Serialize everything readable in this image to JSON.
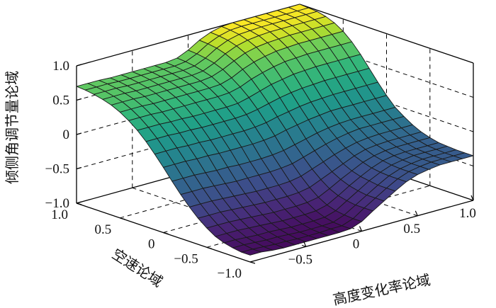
{
  "chart_data": {
    "type": "surface3d",
    "title": "",
    "xlabel": "高度变化率论域",
    "ylabel": "空速论域",
    "zlabel": "倾侧角调节量论域",
    "xlim": [
      -1,
      1
    ],
    "ylim": [
      -1,
      1
    ],
    "zlim": [
      -1,
      1
    ],
    "x_ticks": [
      {
        "value": -0.5,
        "label": "−0.5"
      },
      {
        "value": 0,
        "label": "0"
      },
      {
        "value": 0.5,
        "label": "0.5"
      },
      {
        "value": 1,
        "label": "1.0"
      }
    ],
    "y_ticks": [
      {
        "value": 1,
        "label": "1.0"
      },
      {
        "value": 0.5,
        "label": "0.5"
      },
      {
        "value": 0,
        "label": "0"
      },
      {
        "value": -0.5,
        "label": "−0.5"
      },
      {
        "value": -1,
        "label": "−1.0"
      }
    ],
    "z_ticks": [
      {
        "value": 1,
        "label": "1.0"
      },
      {
        "value": 0.5,
        "label": "0.5"
      },
      {
        "value": 0,
        "label": "0"
      },
      {
        "value": -0.5,
        "label": "−0.5"
      },
      {
        "value": -1,
        "label": "−1.0"
      }
    ],
    "grid": true,
    "colormap": "viridis",
    "grid_x": [
      -1,
      -0.9,
      -0.8,
      -0.7,
      -0.6,
      -0.5,
      -0.4,
      -0.3,
      -0.2,
      -0.1,
      0,
      0.1,
      0.2,
      0.3,
      0.4,
      0.5,
      0.6,
      0.7,
      0.8,
      0.9,
      1
    ],
    "grid_y": [
      -1,
      -0.9,
      -0.8,
      -0.7,
      -0.6,
      -0.5,
      -0.4,
      -0.3,
      -0.2,
      -0.1,
      0,
      0.1,
      0.2,
      0.3,
      0.4,
      0.5,
      0.6,
      0.7,
      0.8,
      0.9,
      1
    ],
    "z_values": [
      [
        -0.9,
        -0.9,
        -0.92,
        -0.93,
        -0.93,
        -0.93,
        -0.93,
        -0.93,
        -0.93,
        -0.92,
        -0.86,
        -0.75,
        -0.65,
        -0.55,
        -0.46,
        -0.4,
        -0.37,
        -0.35,
        -0.35,
        -0.35,
        -0.35
      ],
      [
        -0.9,
        -0.9,
        -0.91,
        -0.92,
        -0.92,
        -0.93,
        -0.93,
        -0.93,
        -0.92,
        -0.92,
        -0.86,
        -0.75,
        -0.65,
        -0.55,
        -0.46,
        -0.4,
        -0.37,
        -0.35,
        -0.35,
        -0.35,
        -0.35
      ],
      [
        -0.88,
        -0.88,
        -0.89,
        -0.9,
        -0.9,
        -0.91,
        -0.92,
        -0.92,
        -0.92,
        -0.91,
        -0.85,
        -0.75,
        -0.65,
        -0.55,
        -0.46,
        -0.4,
        -0.37,
        -0.35,
        -0.35,
        -0.35,
        -0.35
      ],
      [
        -0.85,
        -0.85,
        -0.86,
        -0.87,
        -0.87,
        -0.88,
        -0.89,
        -0.89,
        -0.89,
        -0.88,
        -0.83,
        -0.73,
        -0.63,
        -0.53,
        -0.45,
        -0.39,
        -0.36,
        -0.34,
        -0.34,
        -0.34,
        -0.34
      ],
      [
        -0.8,
        -0.8,
        -0.8,
        -0.81,
        -0.82,
        -0.83,
        -0.84,
        -0.84,
        -0.84,
        -0.83,
        -0.79,
        -0.7,
        -0.6,
        -0.51,
        -0.43,
        -0.37,
        -0.34,
        -0.33,
        -0.33,
        -0.33,
        -0.33
      ],
      [
        -0.72,
        -0.72,
        -0.72,
        -0.73,
        -0.74,
        -0.75,
        -0.76,
        -0.76,
        -0.76,
        -0.75,
        -0.72,
        -0.64,
        -0.55,
        -0.47,
        -0.39,
        -0.34,
        -0.31,
        -0.3,
        -0.3,
        -0.3,
        -0.3
      ],
      [
        -0.62,
        -0.62,
        -0.62,
        -0.63,
        -0.64,
        -0.65,
        -0.66,
        -0.66,
        -0.66,
        -0.65,
        -0.62,
        -0.55,
        -0.48,
        -0.41,
        -0.34,
        -0.29,
        -0.27,
        -0.26,
        -0.26,
        -0.26,
        -0.26
      ],
      [
        -0.5,
        -0.5,
        -0.5,
        -0.51,
        -0.52,
        -0.53,
        -0.54,
        -0.54,
        -0.54,
        -0.53,
        -0.5,
        -0.44,
        -0.38,
        -0.32,
        -0.27,
        -0.23,
        -0.21,
        -0.2,
        -0.2,
        -0.2,
        -0.2
      ],
      [
        -0.36,
        -0.36,
        -0.36,
        -0.37,
        -0.38,
        -0.39,
        -0.39,
        -0.39,
        -0.39,
        -0.38,
        -0.36,
        -0.31,
        -0.26,
        -0.21,
        -0.17,
        -0.14,
        -0.12,
        -0.12,
        -0.12,
        -0.12,
        -0.12
      ],
      [
        -0.21,
        -0.21,
        -0.21,
        -0.22,
        -0.23,
        -0.23,
        -0.24,
        -0.24,
        -0.24,
        -0.23,
        -0.21,
        -0.17,
        -0.13,
        -0.09,
        -0.06,
        -0.04,
        -0.03,
        -0.03,
        -0.03,
        -0.03,
        -0.03
      ],
      [
        -0.05,
        -0.05,
        -0.05,
        -0.06,
        -0.06,
        -0.07,
        -0.07,
        -0.07,
        -0.07,
        -0.06,
        -0.04,
        0,
        0.03,
        0.06,
        0.08,
        0.1,
        0.1,
        0.1,
        0.1,
        0.1,
        0.1
      ],
      [
        0.1,
        0.1,
        0.1,
        0.09,
        0.09,
        0.08,
        0.08,
        0.08,
        0.08,
        0.09,
        0.11,
        0.15,
        0.18,
        0.21,
        0.23,
        0.24,
        0.25,
        0.25,
        0.25,
        0.25,
        0.25
      ],
      [
        0.24,
        0.24,
        0.24,
        0.23,
        0.23,
        0.22,
        0.22,
        0.22,
        0.22,
        0.23,
        0.26,
        0.3,
        0.34,
        0.37,
        0.39,
        0.4,
        0.41,
        0.41,
        0.41,
        0.41,
        0.41
      ],
      [
        0.36,
        0.36,
        0.36,
        0.35,
        0.35,
        0.34,
        0.34,
        0.34,
        0.34,
        0.35,
        0.39,
        0.44,
        0.49,
        0.52,
        0.55,
        0.56,
        0.57,
        0.57,
        0.57,
        0.57,
        0.57
      ],
      [
        0.46,
        0.46,
        0.46,
        0.45,
        0.45,
        0.45,
        0.45,
        0.45,
        0.45,
        0.46,
        0.5,
        0.57,
        0.62,
        0.66,
        0.69,
        0.7,
        0.71,
        0.71,
        0.71,
        0.71,
        0.71
      ],
      [
        0.54,
        0.54,
        0.54,
        0.53,
        0.53,
        0.53,
        0.53,
        0.53,
        0.53,
        0.54,
        0.59,
        0.67,
        0.73,
        0.77,
        0.8,
        0.81,
        0.82,
        0.82,
        0.82,
        0.82,
        0.82
      ],
      [
        0.6,
        0.6,
        0.6,
        0.59,
        0.59,
        0.59,
        0.59,
        0.59,
        0.59,
        0.61,
        0.67,
        0.75,
        0.82,
        0.86,
        0.88,
        0.89,
        0.9,
        0.9,
        0.9,
        0.9,
        0.9
      ],
      [
        0.64,
        0.64,
        0.64,
        0.63,
        0.63,
        0.63,
        0.63,
        0.63,
        0.63,
        0.65,
        0.72,
        0.81,
        0.88,
        0.92,
        0.94,
        0.95,
        0.95,
        0.95,
        0.95,
        0.95,
        0.95
      ],
      [
        0.67,
        0.67,
        0.67,
        0.66,
        0.66,
        0.66,
        0.66,
        0.66,
        0.66,
        0.68,
        0.75,
        0.85,
        0.92,
        0.96,
        0.97,
        0.98,
        0.98,
        0.98,
        0.98,
        0.98,
        0.98
      ],
      [
        0.69,
        0.69,
        0.69,
        0.68,
        0.68,
        0.68,
        0.68,
        0.68,
        0.68,
        0.7,
        0.77,
        0.87,
        0.94,
        0.98,
        0.99,
        0.99,
        0.99,
        0.99,
        0.99,
        0.99,
        0.99
      ],
      [
        0.7,
        0.7,
        0.7,
        0.69,
        0.69,
        0.69,
        0.69,
        0.69,
        0.69,
        0.71,
        0.78,
        0.88,
        0.95,
        0.99,
        1,
        1,
        1,
        1,
        1,
        1,
        1
      ]
    ]
  }
}
